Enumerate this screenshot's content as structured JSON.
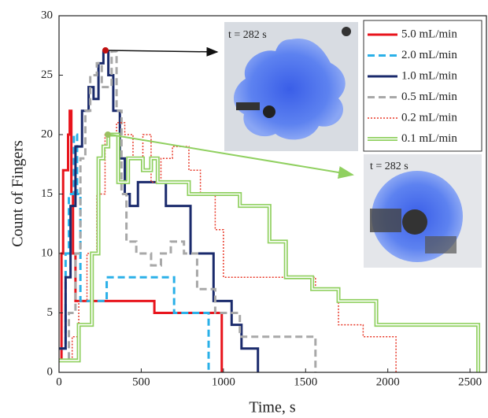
{
  "chart_data": {
    "type": "step",
    "xlabel": "Time, s",
    "ylabel": "Count of Fingers",
    "xlim": [
      0,
      2600
    ],
    "ylim": [
      0,
      30
    ],
    "xticks": [
      0,
      500,
      1000,
      1500,
      2000,
      2500
    ],
    "yticks": [
      0,
      5,
      10,
      15,
      20,
      25,
      30
    ],
    "legend": "upper right",
    "annotations": [
      "t = 282 s",
      "t = 282 s"
    ],
    "series": [
      {
        "name": "5.0 mL/min",
        "color": "#e8141c",
        "dash": "solid",
        "x": [
          0,
          15,
          25,
          35,
          55,
          65,
          75,
          85,
          100,
          580,
          990
        ],
        "values": [
          1,
          10,
          17,
          17,
          20,
          22,
          15,
          10,
          6,
          5,
          0
        ]
      },
      {
        "name": "2.0 mL/min",
        "color": "#2ab0e8",
        "dash": "dashed",
        "x": [
          0,
          40,
          60,
          90,
          110,
          130,
          290,
          700,
          910
        ],
        "values": [
          2,
          10,
          15,
          20,
          15,
          6,
          8,
          5,
          0
        ]
      },
      {
        "name": "1.0 mL/min",
        "color": "#1a2a6c",
        "dash": "solid",
        "x": [
          0,
          40,
          70,
          100,
          140,
          180,
          210,
          240,
          270,
          300,
          330,
          370,
          400,
          430,
          480,
          650,
          800,
          940,
          1050,
          1110,
          1210
        ],
        "values": [
          2,
          8,
          14,
          19,
          22,
          24,
          23,
          26,
          27,
          25,
          22,
          18,
          15,
          14,
          16,
          14,
          10,
          6,
          4,
          2,
          0
        ]
      },
      {
        "name": "0.5 mL/min",
        "color": "#a8a8a8",
        "dash": "dashed",
        "x": [
          0,
          60,
          100,
          130,
          160,
          190,
          230,
          260,
          320,
          350,
          380,
          410,
          470,
          560,
          620,
          680,
          760,
          840,
          950,
          1100,
          1560
        ],
        "values": [
          1,
          5,
          10,
          18,
          22,
          25,
          26,
          24,
          27,
          22,
          15,
          11,
          10,
          9,
          10,
          11,
          10,
          7,
          5,
          3,
          0
        ]
      },
      {
        "name": "0.2 mL/min",
        "color": "#e83a2a",
        "dash": "dotted",
        "x": [
          0,
          80,
          120,
          170,
          230,
          280,
          350,
          400,
          450,
          510,
          560,
          620,
          690,
          790,
          860,
          950,
          1000,
          1560,
          1700,
          1850,
          2050
        ],
        "values": [
          1,
          3,
          6,
          10,
          15,
          20,
          21,
          20,
          18,
          20,
          16,
          18,
          19,
          17,
          15,
          12,
          8,
          7,
          4,
          3,
          0
        ]
      },
      {
        "name": "0.1 mL/min",
        "color": "#90d060",
        "dash": "double",
        "x": [
          0,
          120,
          200,
          240,
          270,
          300,
          360,
          420,
          510,
          560,
          600,
          790,
          1100,
          1280,
          1380,
          1540,
          1700,
          1930,
          2550
        ],
        "values": [
          1,
          4,
          10,
          18,
          19,
          20,
          16,
          18,
          17,
          18,
          16,
          15,
          14,
          11,
          8,
          7,
          6,
          4,
          0
        ]
      }
    ]
  }
}
